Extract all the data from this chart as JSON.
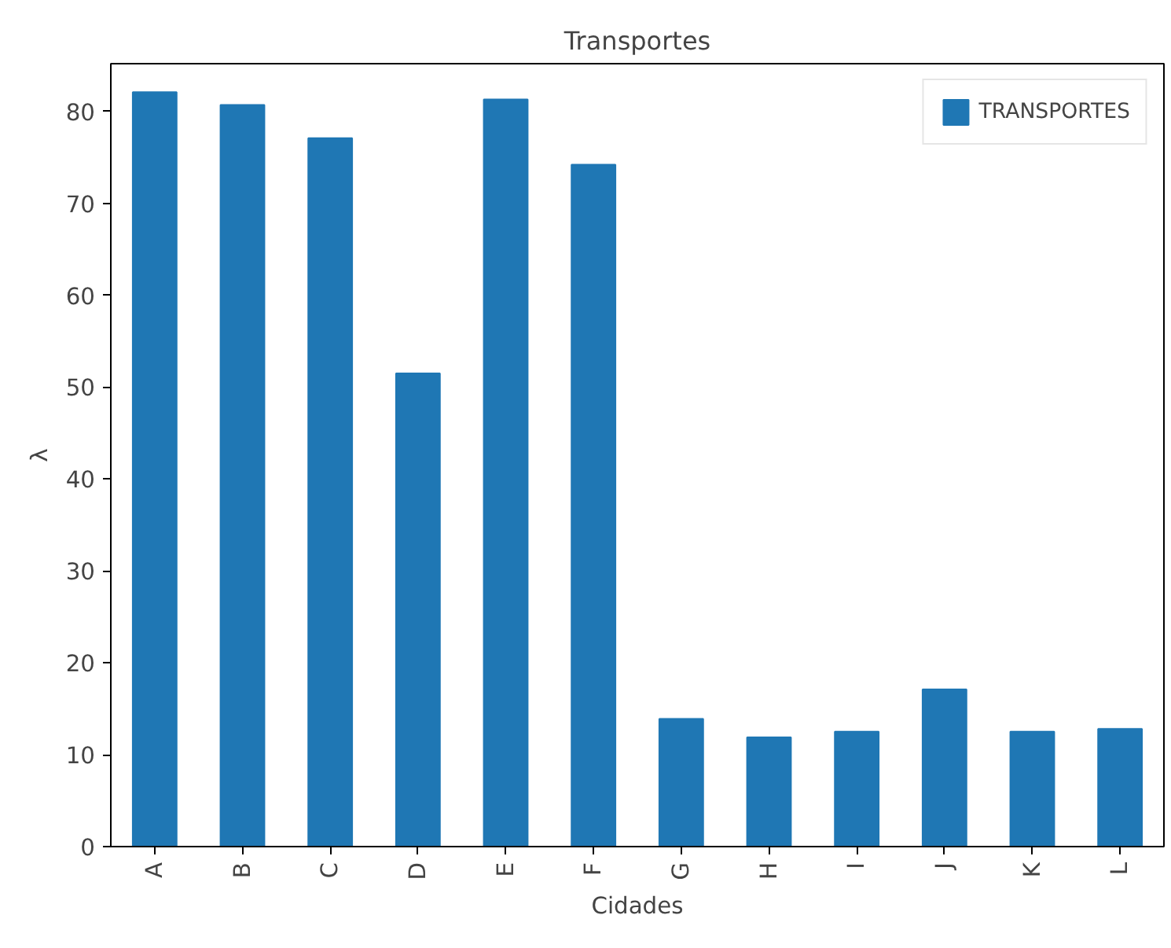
{
  "chart_data": {
    "type": "bar",
    "title": "Transportes",
    "xlabel": "Cidades",
    "ylabel": "λ",
    "categories": [
      "A",
      "B",
      "C",
      "D",
      "E",
      "F",
      "G",
      "H",
      "I",
      "J",
      "K",
      "L"
    ],
    "series": [
      {
        "name": "TRANSPORTES",
        "color": "#1f77b4",
        "values": [
          82.1,
          80.7,
          77.1,
          51.5,
          81.3,
          74.2,
          13.9,
          11.9,
          12.5,
          17.1,
          12.5,
          12.8
        ]
      }
    ],
    "ylim": [
      0,
      85.2
    ],
    "yticks": [
      0,
      10,
      20,
      30,
      40,
      50,
      60,
      70,
      80
    ],
    "grid": false,
    "legend": "top right"
  }
}
